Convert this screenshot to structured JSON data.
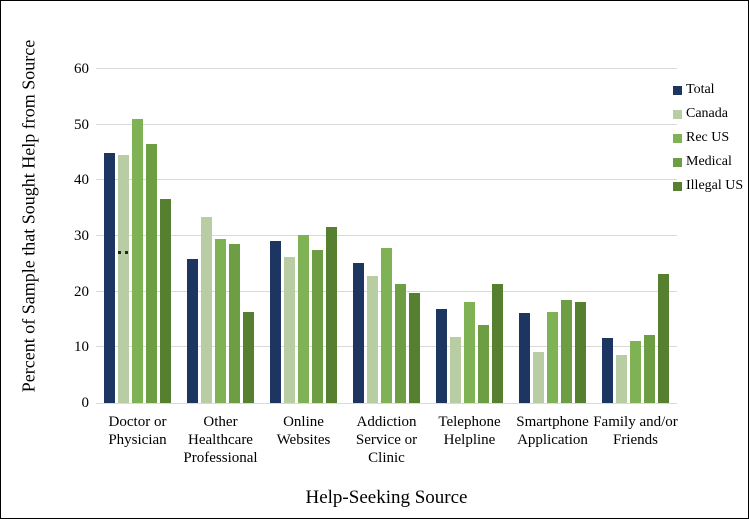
{
  "chart_data": {
    "type": "bar",
    "title": "",
    "xlabel": "Help-Seeking Source",
    "ylabel": "Percent of Sample that Sought Help from Source",
    "ylim": [
      0,
      60
    ],
    "ytick_step": 10,
    "yticks": [
      0,
      10,
      20,
      30,
      40,
      50,
      60
    ],
    "grid": true,
    "gridline_color": "#d9d9d9",
    "legend_position": "top-right",
    "categories": [
      "Doctor or Physician",
      "Other Healthcare Professional",
      "Online Websites",
      "Addiction Service or Clinic",
      "Telephone Helpline",
      "Smartphone Application",
      "Family and/or Friends"
    ],
    "series": [
      {
        "name": "Total",
        "color": "#1c3661",
        "values": [
          45.0,
          25.8,
          29.1,
          25.2,
          16.9,
          16.1,
          11.7
        ]
      },
      {
        "name": "Canada",
        "color": "#b8cda4",
        "values": [
          44.6,
          33.4,
          26.3,
          22.8,
          11.8,
          9.2,
          8.7
        ]
      },
      {
        "name": "Rec US",
        "color": "#7eb254",
        "values": [
          51.0,
          29.4,
          30.1,
          27.8,
          18.1,
          16.4,
          11.1
        ]
      },
      {
        "name": "Medical",
        "color": "#6d9e43",
        "values": [
          46.6,
          28.5,
          27.5,
          21.3,
          14.1,
          18.5,
          12.3
        ]
      },
      {
        "name": "Illegal US",
        "color": "#567f2f",
        "values": [
          36.6,
          16.4,
          31.6,
          19.7,
          21.4,
          18.1,
          23.2
        ]
      }
    ],
    "annotations": [
      {
        "text": "..",
        "category": "Doctor or Physician",
        "series": "Canada",
        "y_value": 27.2,
        "color": "#262626"
      }
    ]
  }
}
